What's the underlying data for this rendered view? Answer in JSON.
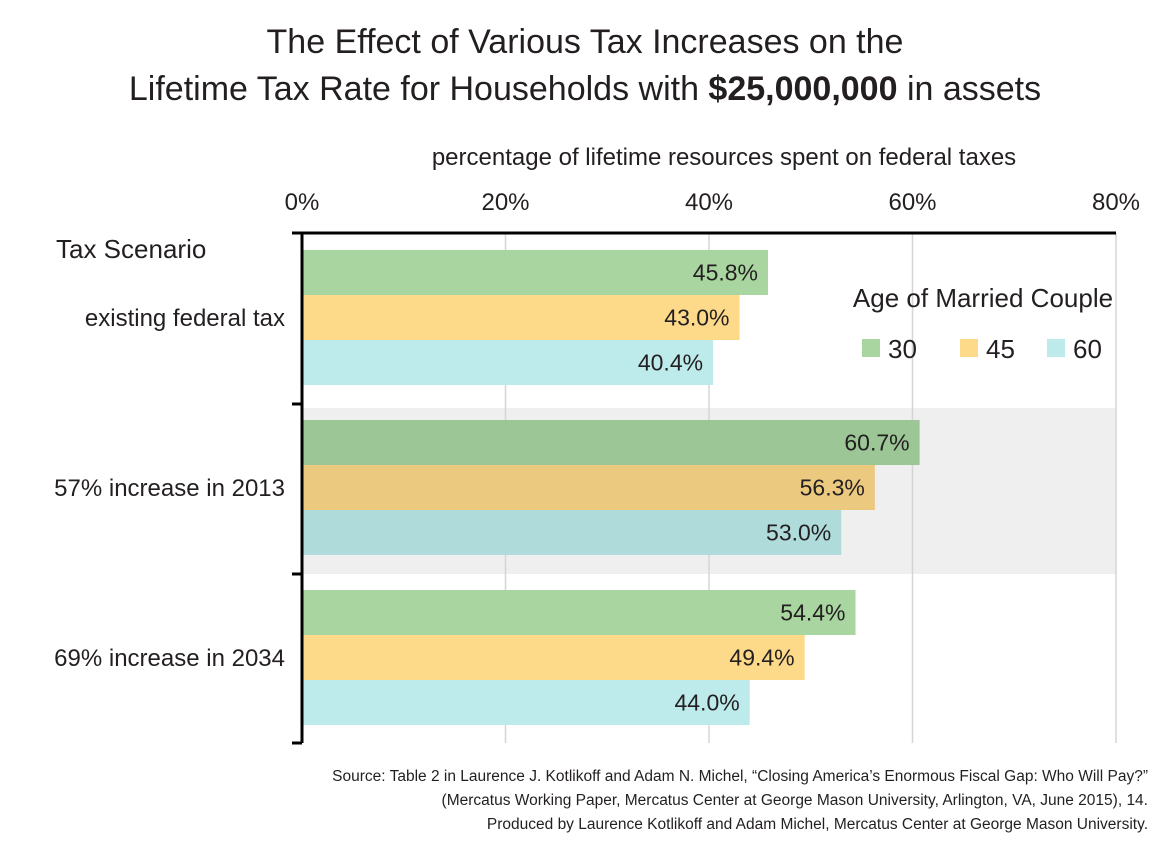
{
  "title": {
    "line1": "The Effect of Various Tax Increases on the",
    "line2_prefix": "Lifetime Tax Rate for Households with ",
    "line2_highlight": "$25,000,000",
    "line2_suffix": " in assets"
  },
  "source": {
    "line1": "Source: Table 2 in Laurence J. Kotlikoff and Adam N. Michel, “Closing America’s Enormous Fiscal Gap: Who Will Pay?”",
    "line2": "(Mercatus Working Paper, Mercatus Center at George Mason University, Arlington, VA, June 2015), 14.",
    "line3": "Produced by Laurence Kotlikoff and Adam Michel, Mercatus Center at George Mason University."
  },
  "chart_data": {
    "type": "bar",
    "orientation": "horizontal",
    "xlabel": "percentage of lifetime resources spent on federal taxes",
    "ylabel": "Tax Scenario",
    "xlim": [
      0,
      80
    ],
    "xticks": [
      0,
      20,
      40,
      60,
      80
    ],
    "xtick_labels": [
      "0%",
      "20%",
      "40%",
      "60%",
      "80%"
    ],
    "x_axis_position": "top",
    "grid": true,
    "categories": [
      "existing federal tax",
      "57% increase in 2013",
      "69% increase in 2034"
    ],
    "highlighted_category": "57% increase in 2013",
    "legend_title": "Age of Married Couple",
    "legend_position": "top-right",
    "series": [
      {
        "name": "30",
        "color": "#a8d5a0",
        "values": [
          45.8,
          60.7,
          54.4
        ],
        "labels": [
          "45.8%",
          "60.7%",
          "54.4%"
        ]
      },
      {
        "name": "45",
        "color": "#fdd98a",
        "values": [
          43.0,
          56.3,
          49.4
        ],
        "labels": [
          "43.0%",
          "56.3%",
          "49.4%"
        ]
      },
      {
        "name": "60",
        "color": "#bdebeb",
        "values": [
          40.4,
          53.0,
          44.0
        ],
        "labels": [
          "40.4%",
          "53.0%",
          "44.0%"
        ]
      }
    ]
  }
}
